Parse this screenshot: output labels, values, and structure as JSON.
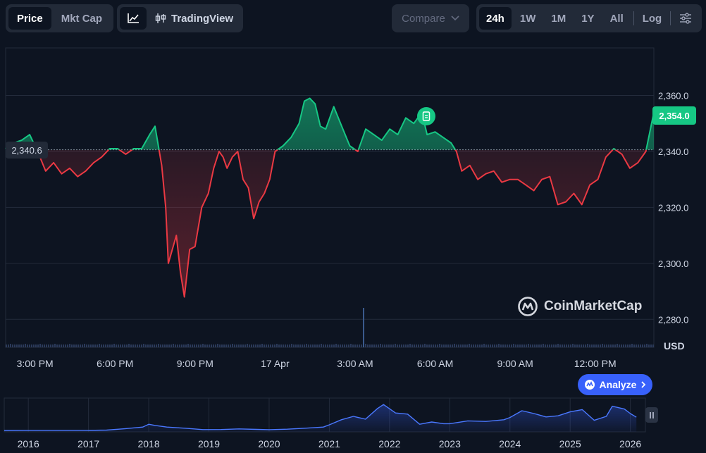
{
  "toolbar": {
    "metric_tabs": [
      {
        "label": "Price",
        "active": true
      },
      {
        "label": "Mkt Cap",
        "active": false
      }
    ],
    "chart_type_icon": "line-chart-icon",
    "tradingview_label": "TradingView",
    "tradingview_icon": "candlestick-icon",
    "compare_label": "Compare",
    "ranges": [
      {
        "label": "24h",
        "active": true
      },
      {
        "label": "1W",
        "active": false
      },
      {
        "label": "1M",
        "active": false
      },
      {
        "label": "1Y",
        "active": false
      },
      {
        "label": "All",
        "active": false
      }
    ],
    "log_label": "Log",
    "settings_icon": "sliders-icon"
  },
  "price": {
    "current_label": "2,354.0",
    "open_label": "2,340.6"
  },
  "axis_unit": "USD",
  "watermark": "CoinMarketCap",
  "analyze_label": "Analyze",
  "colors": {
    "background": "#0d1421",
    "up": "#16c784",
    "down": "#ea3943",
    "accent": "#3861fb",
    "grid": "#232b3b"
  },
  "chart_data": [
    {
      "type": "line",
      "title": "",
      "xlabel": "",
      "ylabel": "USD",
      "ylim": [
        2270,
        2377
      ],
      "y_ticks": [
        "2,280.0",
        "2,300.0",
        "2,320.0",
        "2,340.0",
        "2,360.0"
      ],
      "y_tick_values": [
        2280,
        2300,
        2320,
        2340,
        2360
      ],
      "x_ticks": [
        "3:00 PM",
        "6:00 PM",
        "9:00 PM",
        "17 Apr",
        "3:00 AM",
        "6:00 AM",
        "9:00 AM",
        "12:00 PM"
      ],
      "x_tick_values": [
        1.1,
        4.1,
        7.1,
        10.1,
        13.1,
        16.1,
        19.1,
        22.1
      ],
      "xlim": [
        0,
        24.3
      ],
      "baseline": 2340.6,
      "grid": true,
      "x": [
        0.0,
        0.3,
        0.6,
        0.9,
        1.2,
        1.5,
        1.8,
        2.1,
        2.4,
        2.7,
        3.0,
        3.3,
        3.6,
        3.9,
        4.2,
        4.5,
        4.8,
        5.1,
        5.4,
        5.6,
        5.85,
        6.0,
        6.1,
        6.25,
        6.4,
        6.55,
        6.7,
        6.9,
        7.1,
        7.35,
        7.6,
        7.8,
        8.0,
        8.15,
        8.3,
        8.5,
        8.7,
        8.9,
        9.1,
        9.3,
        9.5,
        9.7,
        9.9,
        10.1,
        10.4,
        10.7,
        11.0,
        11.2,
        11.4,
        11.6,
        11.8,
        12.0,
        12.3,
        12.6,
        12.9,
        13.2,
        13.5,
        13.8,
        14.1,
        14.4,
        14.7,
        15.0,
        15.3,
        15.6,
        15.8,
        16.1,
        16.4,
        16.7,
        16.9,
        17.1,
        17.4,
        17.7,
        18.0,
        18.3,
        18.6,
        18.9,
        19.2,
        19.5,
        19.8,
        20.1,
        20.4,
        20.7,
        21.0,
        21.3,
        21.6,
        21.9,
        22.2,
        22.5,
        22.8,
        23.1,
        23.4,
        23.7,
        24.0,
        24.3
      ],
      "series": [
        {
          "values": [
            2341,
            2343,
            2344,
            2346,
            2340,
            2333,
            2336,
            2332,
            2334,
            2331,
            2333,
            2336,
            2338,
            2341,
            2341,
            2339,
            2341,
            2341,
            2346,
            2349,
            2335,
            2320,
            2300,
            2305,
            2310,
            2297,
            2288,
            2305,
            2306,
            2320,
            2325,
            2334,
            2340,
            2338,
            2334,
            2338,
            2340,
            2330,
            2327,
            2316,
            2322,
            2325,
            2330,
            2340,
            2342,
            2345,
            2350,
            2358,
            2359,
            2357,
            2349,
            2348,
            2356,
            2349,
            2342,
            2340,
            2348,
            2346,
            2344,
            2348,
            2346,
            2352,
            2350,
            2354,
            2346,
            2347,
            2345,
            2343,
            2340,
            2333,
            2335,
            2330,
            2332,
            2333,
            2329,
            2330,
            2330,
            2328,
            2326,
            2330,
            2331,
            2321,
            2322,
            2325,
            2321,
            2328,
            2330,
            2338,
            2341,
            2339,
            2334,
            2336,
            2340,
            2354
          ]
        }
      ]
    },
    {
      "type": "area",
      "title": "",
      "x_ticks": [
        "2016",
        "2017",
        "2018",
        "2019",
        "2020",
        "2021",
        "2022",
        "2023",
        "2024",
        "2025",
        "2026"
      ],
      "x": [
        2015.6,
        2016,
        2016.5,
        2017,
        2017.3,
        2017.6,
        2017.9,
        2018.0,
        2018.1,
        2018.3,
        2018.6,
        2018.9,
        2019.2,
        2019.5,
        2019.8,
        2020.0,
        2020.3,
        2020.6,
        2020.9,
        2021.0,
        2021.2,
        2021.4,
        2021.6,
        2021.8,
        2021.9,
        2022.1,
        2022.3,
        2022.5,
        2022.7,
        2022.9,
        2023.0,
        2023.3,
        2023.6,
        2023.9,
        2024.0,
        2024.2,
        2024.4,
        2024.6,
        2024.8,
        2025.0,
        2025.2,
        2025.4,
        2025.6,
        2025.7,
        2025.9,
        2026.0,
        2026.1
      ],
      "values": [
        1,
        10,
        12,
        14,
        60,
        300,
        600,
        1100,
        900,
        600,
        400,
        150,
        160,
        280,
        190,
        140,
        230,
        400,
        600,
        1000,
        1900,
        2500,
        2000,
        3900,
        4600,
        3100,
        2900,
        1100,
        1500,
        1200,
        1200,
        1700,
        1600,
        1900,
        2300,
        3500,
        3000,
        2400,
        2600,
        3300,
        3700,
        1800,
        2500,
        4300,
        3800,
        3000,
        2354
      ]
    }
  ]
}
